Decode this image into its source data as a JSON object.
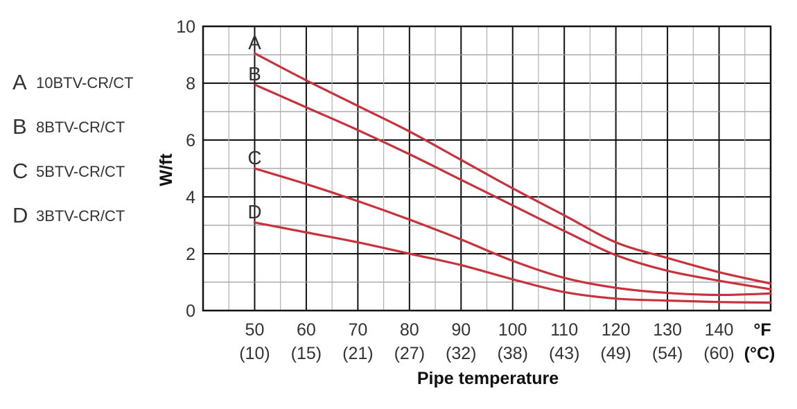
{
  "chart_data": {
    "type": "line",
    "xlabel": "Pipe temperature",
    "ylabel": "W/ft",
    "x_unit": "°F",
    "x_unit_secondary": "(°C)",
    "xlim": [
      40,
      150
    ],
    "ylim": [
      0,
      10
    ],
    "x_ticks": [
      50,
      60,
      70,
      80,
      90,
      100,
      110,
      120,
      130,
      140
    ],
    "x_tick_labels": [
      "50",
      "60",
      "70",
      "80",
      "90",
      "100",
      "110",
      "120",
      "130",
      "140"
    ],
    "x_tick_labels_c": [
      "(10)",
      "(15)",
      "(21)",
      "(27)",
      "(32)",
      "(38)",
      "(43)",
      "(49)",
      "(54)",
      "(60)"
    ],
    "y_ticks": [
      0,
      2,
      4,
      6,
      8,
      10
    ],
    "y_tick_labels": [
      "0",
      "2",
      "4",
      "6",
      "8",
      "10"
    ],
    "grid": true,
    "legend_position": "left",
    "line_color": "#c8323c",
    "series": [
      {
        "name": "10BTV-CR/CT",
        "label": "A",
        "x": [
          50,
          60,
          70,
          80,
          90,
          100,
          110,
          120,
          130,
          140,
          150
        ],
        "y": [
          9.05,
          8.1,
          7.2,
          6.3,
          5.3,
          4.3,
          3.35,
          2.4,
          1.85,
          1.35,
          0.95
        ]
      },
      {
        "name": "8BTV-CR/CT",
        "label": "B",
        "x": [
          50,
          60,
          70,
          80,
          90,
          100,
          110,
          120,
          130,
          140,
          150
        ],
        "y": [
          7.95,
          7.15,
          6.35,
          5.5,
          4.6,
          3.7,
          2.8,
          1.95,
          1.4,
          1.05,
          0.75
        ]
      },
      {
        "name": "5BTV-CR/CT",
        "label": "C",
        "x": [
          50,
          60,
          70,
          80,
          90,
          100,
          110,
          120,
          130,
          140,
          150
        ],
        "y": [
          5.0,
          4.45,
          3.85,
          3.2,
          2.5,
          1.75,
          1.15,
          0.8,
          0.62,
          0.55,
          0.6
        ]
      },
      {
        "name": "3BTV-CR/CT",
        "label": "D",
        "x": [
          50,
          60,
          70,
          80,
          90,
          100,
          110,
          120,
          130,
          140,
          150
        ],
        "y": [
          3.1,
          2.75,
          2.4,
          2.0,
          1.6,
          1.1,
          0.65,
          0.42,
          0.35,
          0.3,
          0.28
        ]
      }
    ]
  }
}
